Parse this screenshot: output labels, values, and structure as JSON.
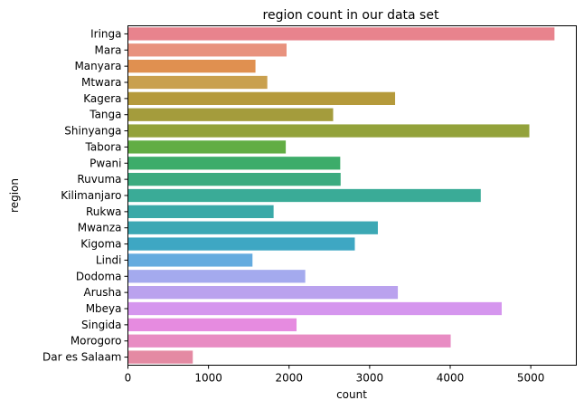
{
  "chart_data": {
    "type": "bar",
    "orientation": "horizontal",
    "title": "region count in our data set",
    "xlabel": "count",
    "ylabel": "region",
    "xlim": [
      0,
      5565
    ],
    "xticks": [
      0,
      1000,
      2000,
      3000,
      4000,
      5000
    ],
    "grid": false,
    "categories": [
      "Iringa",
      "Mara",
      "Manyara",
      "Mtwara",
      "Kagera",
      "Tanga",
      "Shinyanga",
      "Tabora",
      "Pwani",
      "Ruvuma",
      "Kilimanjaro",
      "Rukwa",
      "Mwanza",
      "Kigoma",
      "Lindi",
      "Dodoma",
      "Arusha",
      "Mbeya",
      "Singida",
      "Morogoro",
      "Dar es Salaam"
    ],
    "values": [
      5294,
      1969,
      1583,
      1730,
      3316,
      2547,
      4982,
      1959,
      2635,
      2640,
      4379,
      1808,
      3102,
      2816,
      1546,
      2201,
      3350,
      4639,
      2093,
      4006,
      805
    ],
    "colors": [
      "#e8838d",
      "#e8927e",
      "#e09050",
      "#c9a04e",
      "#b59a3b",
      "#a49c3c",
      "#93a23b",
      "#62ad44",
      "#3dac6a",
      "#3bab7f",
      "#3aab97",
      "#3aa9a8",
      "#3ca8b4",
      "#3ea7c3",
      "#64abdf",
      "#a4aaee",
      "#baa2ee",
      "#d596ee",
      "#e68be0",
      "#e88cc3",
      "#e48aa3"
    ]
  }
}
